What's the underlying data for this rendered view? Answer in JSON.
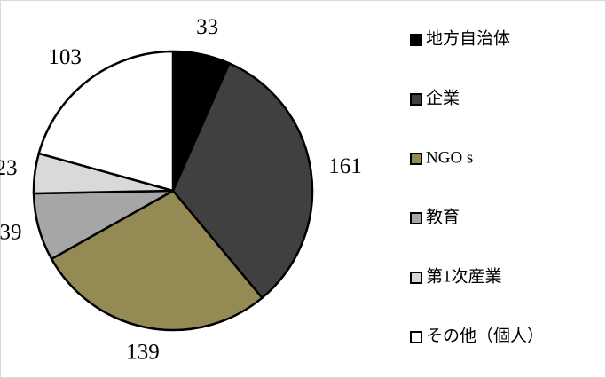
{
  "chart_data": {
    "type": "pie",
    "categories": [
      "地方自治体",
      "企業",
      "NGO s",
      "教育",
      "第1次産業",
      "その他（個人）"
    ],
    "values": [
      33,
      161,
      139,
      39,
      23,
      103
    ],
    "colors": [
      "#000000",
      "#404040",
      "#948a54",
      "#a6a6a6",
      "#d9d9d9",
      "#ffffff"
    ],
    "legend": "right"
  }
}
